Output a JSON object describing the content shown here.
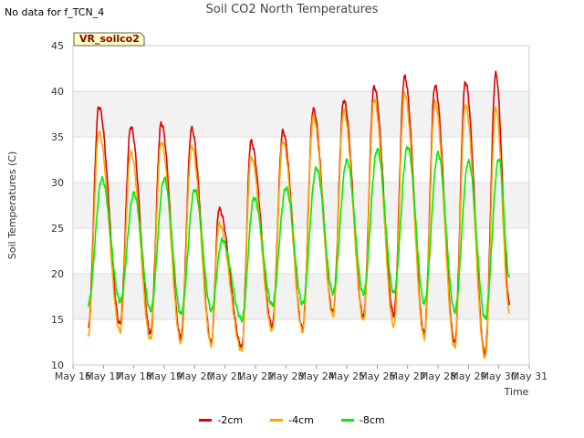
{
  "note": "No data for f_TCN_4",
  "chart_data": {
    "type": "line",
    "title": "Soil CO2 North Temperatures",
    "xlabel": "Time",
    "ylabel": "Soil Temperatures (C)",
    "badge": "VR_soilco2",
    "ylim": [
      10,
      45
    ],
    "yticks": [
      10,
      15,
      20,
      25,
      30,
      35,
      40,
      45
    ],
    "xlim": [
      16,
      31
    ],
    "xtick_values": [
      16,
      17,
      18,
      19,
      20,
      21,
      22,
      23,
      24,
      25,
      26,
      27,
      28,
      29,
      30,
      31
    ],
    "xtick_labels": [
      "May 16",
      "May 17",
      "May 18",
      "May 19",
      "May 20",
      "May 21",
      "May 22",
      "May 23",
      "May 24",
      "May 25",
      "May 26",
      "May 27",
      "May 28",
      "May 29",
      "May 30",
      "May 31"
    ],
    "grid": true,
    "legend_position": "bottom",
    "series": [
      {
        "name": "-2cm",
        "color": "#dd0000",
        "mins": [
          [
            16.5,
            14.0
          ],
          [
            17.55,
            14.5
          ],
          [
            18.55,
            13.5
          ],
          [
            19.55,
            13.0
          ],
          [
            20.55,
            12.5
          ],
          [
            21.55,
            12.0
          ],
          [
            22.55,
            14.3
          ],
          [
            23.55,
            14.0
          ],
          [
            24.55,
            15.8
          ],
          [
            25.55,
            15.3
          ],
          [
            26.55,
            15.5
          ],
          [
            27.55,
            13.5
          ],
          [
            28.55,
            12.5
          ],
          [
            29.55,
            11.2
          ],
          [
            30.35,
            16.8
          ]
        ],
        "maxs": [
          [
            16.85,
            38.3
          ],
          [
            17.9,
            36.1
          ],
          [
            18.9,
            36.5
          ],
          [
            19.9,
            35.9
          ],
          [
            20.8,
            27.1
          ],
          [
            21.85,
            34.5
          ],
          [
            22.9,
            35.6
          ],
          [
            23.9,
            38.0
          ],
          [
            24.9,
            39.0
          ],
          [
            25.9,
            40.5
          ],
          [
            26.9,
            41.6
          ],
          [
            27.9,
            40.6
          ],
          [
            28.9,
            41.0
          ],
          [
            29.9,
            41.9
          ]
        ]
      },
      {
        "name": "-4cm",
        "color": "#ffa500",
        "mins": [
          [
            16.5,
            13.3
          ],
          [
            17.55,
            13.7
          ],
          [
            18.55,
            12.8
          ],
          [
            19.55,
            12.5
          ],
          [
            20.55,
            12.2
          ],
          [
            21.55,
            11.6
          ],
          [
            22.55,
            13.8
          ],
          [
            23.55,
            13.7
          ],
          [
            24.55,
            15.4
          ],
          [
            25.55,
            14.9
          ],
          [
            26.55,
            14.3
          ],
          [
            27.55,
            13.0
          ],
          [
            28.55,
            11.9
          ],
          [
            29.55,
            10.8
          ],
          [
            30.35,
            15.9
          ]
        ],
        "maxs": [
          [
            16.85,
            35.5
          ],
          [
            17.9,
            33.3
          ],
          [
            18.9,
            34.4
          ],
          [
            19.9,
            34.0
          ],
          [
            20.8,
            25.5
          ],
          [
            21.85,
            32.8
          ],
          [
            22.9,
            34.5
          ],
          [
            23.9,
            37.1
          ],
          [
            24.9,
            37.8
          ],
          [
            25.9,
            39.1
          ],
          [
            26.9,
            39.8
          ],
          [
            27.9,
            38.8
          ],
          [
            28.9,
            38.5
          ],
          [
            29.9,
            38.2
          ]
        ]
      },
      {
        "name": "-8cm",
        "color": "#00ee00",
        "mins": [
          [
            16.5,
            16.7
          ],
          [
            17.55,
            17.0
          ],
          [
            18.55,
            16.0
          ],
          [
            19.55,
            15.6
          ],
          [
            20.55,
            16.0
          ],
          [
            21.55,
            15.0
          ],
          [
            22.55,
            16.6
          ],
          [
            23.55,
            16.7
          ],
          [
            24.55,
            17.9
          ],
          [
            25.55,
            17.8
          ],
          [
            26.55,
            17.9
          ],
          [
            27.55,
            16.8
          ],
          [
            28.55,
            15.9
          ],
          [
            29.55,
            15.1
          ],
          [
            30.35,
            19.6
          ]
        ],
        "maxs": [
          [
            16.95,
            30.4
          ],
          [
            18.0,
            28.8
          ],
          [
            19.0,
            30.4
          ],
          [
            20.0,
            29.2
          ],
          [
            20.9,
            23.7
          ],
          [
            21.95,
            28.3
          ],
          [
            23.0,
            29.4
          ],
          [
            24.0,
            31.6
          ],
          [
            25.0,
            32.4
          ],
          [
            26.0,
            33.6
          ],
          [
            27.0,
            33.9
          ],
          [
            28.0,
            33.2
          ],
          [
            29.0,
            32.3
          ],
          [
            30.0,
            32.6
          ]
        ]
      }
    ]
  }
}
